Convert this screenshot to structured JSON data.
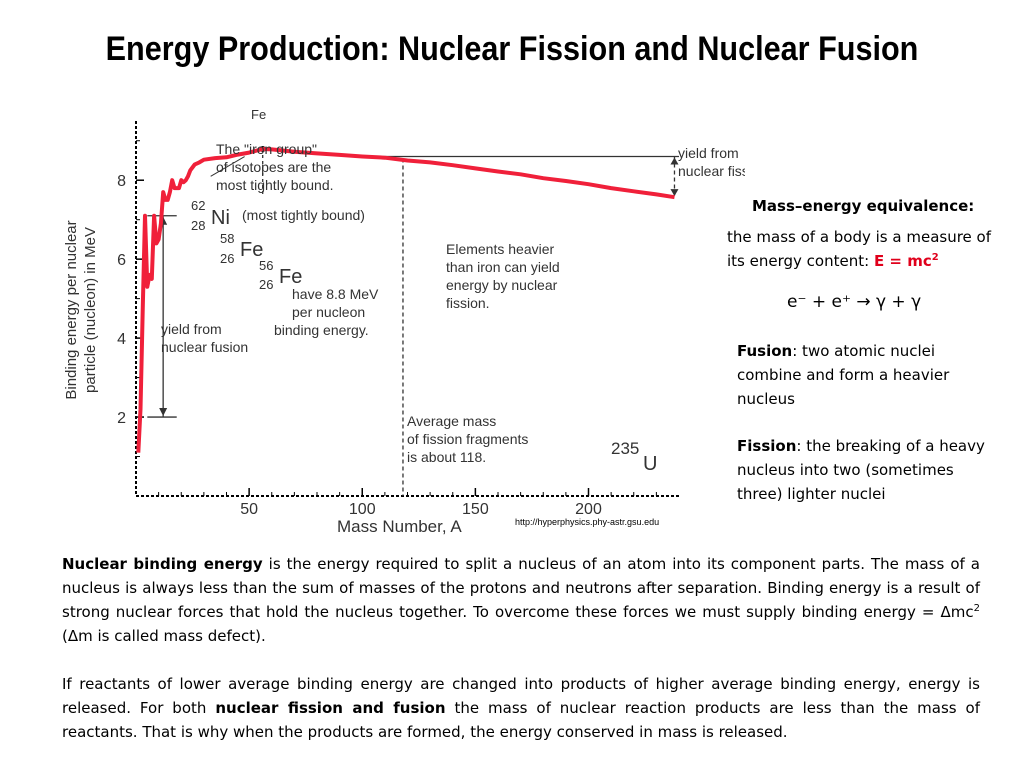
{
  "title": "Energy Production: Nuclear Fission and Nuclear Fusion",
  "chart_data": {
    "type": "line",
    "xlabel": "Mass Number, A",
    "ylabel_line1": "Binding energy per nuclear",
    "ylabel_line2": "particle (nucleon) in MeV",
    "xlim": [
      0,
      240
    ],
    "ylim": [
      0,
      9.5
    ],
    "x_ticks": [
      50,
      100,
      150,
      200
    ],
    "y_ticks": [
      2,
      4,
      6,
      8
    ],
    "series": [
      {
        "points": [
          [
            1,
            1.1
          ],
          [
            2,
            2.2
          ],
          [
            3,
            4.8
          ],
          [
            4,
            7.1
          ],
          [
            5,
            5.3
          ],
          [
            6,
            5.6
          ],
          [
            7,
            5.5
          ],
          [
            8,
            7.1
          ],
          [
            9,
            6.4
          ],
          [
            10,
            6.5
          ],
          [
            11,
            6.9
          ],
          [
            12,
            7.7
          ],
          [
            13,
            7.5
          ],
          [
            14,
            7.5
          ],
          [
            15,
            7.7
          ],
          [
            16,
            8.0
          ],
          [
            17,
            7.8
          ],
          [
            18,
            7.8
          ],
          [
            19,
            7.8
          ],
          [
            20,
            8.0
          ],
          [
            21,
            7.95
          ],
          [
            22,
            8.0
          ],
          [
            23,
            8.1
          ],
          [
            24,
            8.25
          ],
          [
            26,
            8.4
          ],
          [
            28,
            8.45
          ],
          [
            30,
            8.52
          ],
          [
            35,
            8.56
          ],
          [
            40,
            8.58
          ],
          [
            45,
            8.65
          ],
          [
            50,
            8.7
          ],
          [
            56,
            8.79
          ],
          [
            60,
            8.78
          ],
          [
            70,
            8.72
          ],
          [
            80,
            8.68
          ],
          [
            90,
            8.64
          ],
          [
            100,
            8.6
          ],
          [
            110,
            8.57
          ],
          [
            120,
            8.5
          ],
          [
            130,
            8.45
          ],
          [
            140,
            8.38
          ],
          [
            150,
            8.3
          ],
          [
            160,
            8.22
          ],
          [
            170,
            8.15
          ],
          [
            180,
            8.05
          ],
          [
            190,
            7.98
          ],
          [
            200,
            7.9
          ],
          [
            210,
            7.8
          ],
          [
            220,
            7.72
          ],
          [
            230,
            7.64
          ],
          [
            238,
            7.57
          ]
        ]
      }
    ],
    "markers": {
      "fe_top_label": "Fe",
      "ni_label": "Ni",
      "ni_mass": "62",
      "ni_atomic": "28",
      "ni_note": "(most tightly bound)",
      "fe58_label": "Fe",
      "fe58_mass": "58",
      "fe58_atomic": "26",
      "fe56_label": "Fe",
      "fe56_mass": "56",
      "fe56_atomic": "26",
      "u_label": "U",
      "u_mass": "235"
    },
    "annotations": {
      "iron_group": [
        "The \"iron group\"",
        "of isotopes are the",
        "most tightly bound."
      ],
      "fe56_note": [
        "have 8.8 MeV",
        "per nucleon",
        "binding energy."
      ],
      "fusion_yield": [
        "yield from",
        "nuclear fusion"
      ],
      "fission_yield": [
        "yield from",
        "nuclear fission"
      ],
      "heavier_elements": [
        "Elements heavier",
        "than iron can yield",
        "energy by nuclear",
        "fission."
      ],
      "avg_mass": [
        "Average mass",
        "of fission fragments",
        "is about 118."
      ]
    },
    "colors": {
      "curve": "#f0203a",
      "axes": "#000000",
      "annotation_lines": "#333333"
    }
  },
  "credit": "http://hyperphysics.phy-astr.gsu.edu",
  "sidebar": {
    "mee_title": "Mass–energy equivalence:",
    "mee_text": "the mass of a body is a measure of its energy content:",
    "mee_formula": "E = mc",
    "mee_formula_sup": "2",
    "equation": "e⁻ + e⁺ → γ + γ",
    "fusion_term": "Fusion",
    "fusion_text": ": two atomic nuclei combine and form a heavier nucleus",
    "fission_term": "Fission",
    "fission_text": ": the breaking of a heavy nucleus into two (sometimes three) lighter nuclei"
  },
  "paragraph1": {
    "bold": "Nuclear binding energy",
    "text": " is the energy required to split a nucleus of an atom into its component parts. The mass of a nucleus is always less than the sum of masses of the protons and neutrons after separation. Binding energy is a result of strong nuclear forces that hold the nucleus together. To overcome these forces we must supply binding energy = Δmc",
    "sup": "2",
    "end": " (Δm is called mass defect)."
  },
  "paragraph2": {
    "start": "If reactants of lower average binding energy are changed into products of higher average binding energy, energy is released. For both ",
    "bold": "nuclear fission and fusion",
    "end": " the mass of nuclear reaction products are less than the mass of reactants. That is why when the products are formed, the energy conserved in mass is released."
  }
}
